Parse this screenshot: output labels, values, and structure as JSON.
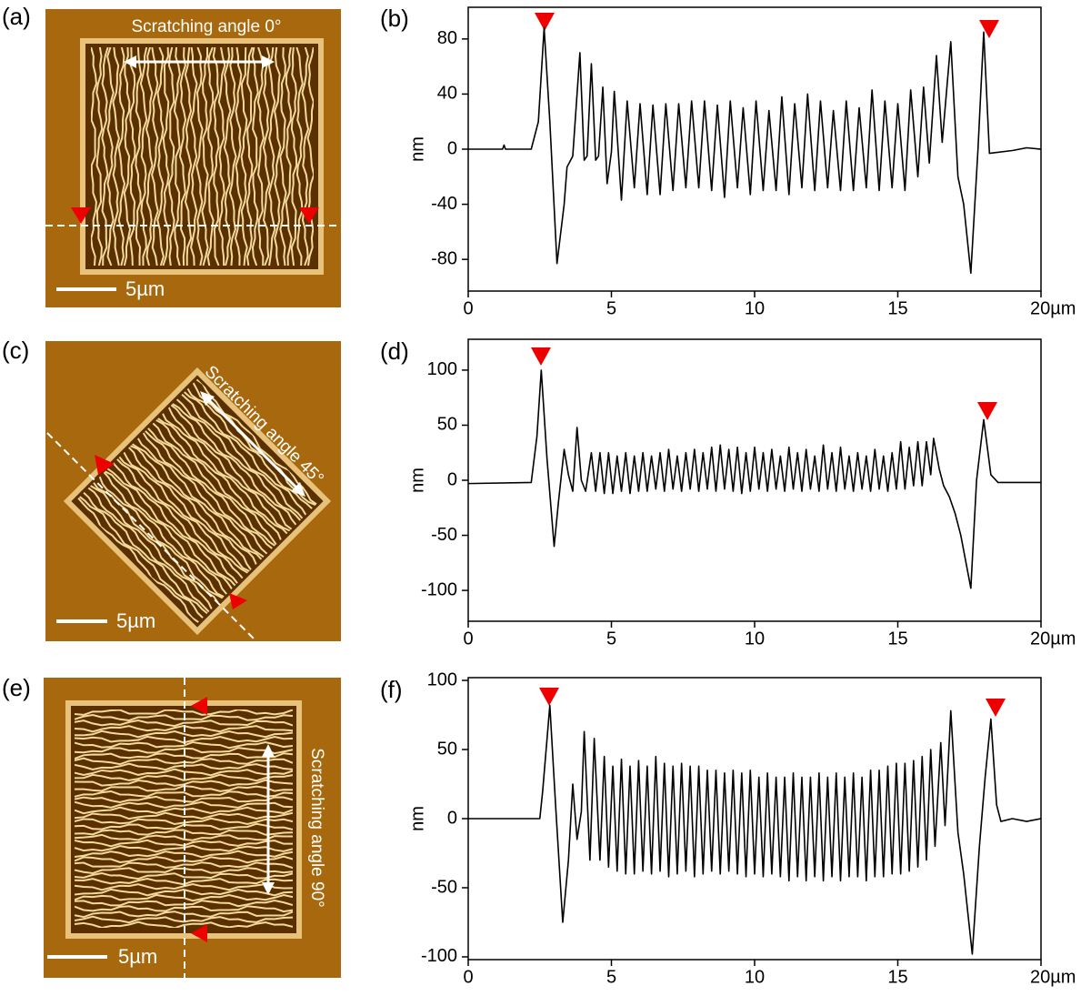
{
  "panels": [
    {
      "label": "(a)",
      "caption": "Scratching angle 0°",
      "scale_bar": "5µm"
    },
    {
      "label": "(c)",
      "caption": "Scratching angle 45°",
      "scale_bar": "5µm"
    },
    {
      "label": "(e)",
      "caption": "Scratching angle 90°",
      "scale_bar": "5µm"
    }
  ],
  "chart_data": [
    {
      "type": "line",
      "panel_label": "(b)",
      "y_label": "nm",
      "color": "#000000",
      "xlim": [
        0,
        20
      ],
      "ylim": [
        -103,
        103
      ],
      "xticks": [
        0,
        5,
        10,
        15,
        {
          "value": 20,
          "label": "20µm"
        }
      ],
      "yticks": [
        -80,
        -40,
        0,
        40,
        80
      ],
      "x": [
        0,
        1.2,
        1.25,
        1.3,
        2.2,
        2.45,
        2.65,
        2.85,
        3.1,
        3.35,
        3.45,
        3.65,
        3.9,
        4.05,
        4.15,
        4.3,
        4.45,
        4.55,
        4.7,
        4.85,
        5.0,
        5.1,
        5.35,
        5.55,
        5.8,
        6.0,
        6.25,
        6.45,
        6.7,
        6.9,
        7.15,
        7.35,
        7.6,
        7.8,
        8.05,
        8.25,
        8.5,
        8.7,
        8.95,
        9.15,
        9.4,
        9.6,
        9.85,
        10.05,
        10.3,
        10.5,
        10.75,
        10.95,
        11.2,
        11.4,
        11.65,
        11.85,
        12.1,
        12.3,
        12.55,
        12.75,
        13.0,
        13.2,
        13.45,
        13.65,
        13.9,
        14.1,
        14.35,
        14.55,
        14.8,
        15.0,
        15.25,
        15.45,
        15.7,
        15.9,
        16.1,
        16.35,
        16.55,
        16.85,
        17.1,
        17.3,
        17.55,
        17.8,
        18.0,
        18.2,
        19.0,
        19.5,
        20
      ],
      "values": [
        0,
        0,
        3,
        0,
        0,
        20,
        88,
        20,
        -83,
        -40,
        -13,
        -5,
        70,
        -8,
        -5,
        62,
        -8,
        -5,
        45,
        -25,
        -2,
        42,
        -37,
        35,
        -28,
        33,
        -33,
        32,
        -33,
        33,
        -30,
        33,
        -28,
        35,
        -28,
        35,
        -30,
        32,
        -35,
        35,
        -28,
        30,
        -33,
        35,
        -30,
        28,
        -30,
        38,
        -33,
        33,
        -28,
        40,
        -30,
        35,
        -28,
        28,
        -30,
        35,
        -30,
        30,
        -28,
        43,
        -30,
        35,
        -28,
        33,
        -30,
        43,
        -20,
        45,
        -10,
        68,
        5,
        78,
        -20,
        -40,
        -90,
        0,
        85,
        -3,
        -1,
        1,
        0
      ]
    },
    {
      "type": "line",
      "panel_label": "(d)",
      "y_label": "nm",
      "color": "#000000",
      "xlim": [
        0,
        20
      ],
      "ylim": [
        -128,
        128
      ],
      "xticks": [
        0,
        5,
        10,
        15,
        {
          "value": 20,
          "label": "20µm"
        }
      ],
      "yticks": [
        -100,
        -50,
        0,
        50,
        100
      ],
      "x": [
        0,
        2.2,
        2.4,
        2.55,
        2.75,
        3.0,
        3.15,
        3.35,
        3.5,
        3.65,
        3.8,
        3.95,
        4.1,
        4.3,
        4.45,
        4.6,
        4.75,
        4.9,
        5.05,
        5.2,
        5.35,
        5.5,
        5.65,
        5.8,
        5.95,
        6.1,
        6.25,
        6.4,
        6.55,
        6.7,
        6.85,
        7.0,
        7.15,
        7.3,
        7.45,
        7.6,
        7.75,
        7.9,
        8.05,
        8.2,
        8.35,
        8.5,
        8.65,
        8.8,
        8.95,
        9.1,
        9.25,
        9.4,
        9.55,
        9.7,
        9.85,
        10.0,
        10.15,
        10.3,
        10.45,
        10.6,
        10.75,
        10.9,
        11.05,
        11.2,
        11.35,
        11.5,
        11.65,
        11.8,
        11.95,
        12.1,
        12.25,
        12.4,
        12.55,
        12.7,
        12.85,
        13.0,
        13.15,
        13.3,
        13.45,
        13.6,
        13.75,
        13.9,
        14.05,
        14.2,
        14.35,
        14.5,
        14.65,
        14.8,
        14.95,
        15.1,
        15.25,
        15.4,
        15.55,
        15.7,
        15.85,
        16.0,
        16.15,
        16.25,
        16.45,
        16.6,
        16.8,
        17.0,
        17.2,
        17.55,
        17.75,
        18.0,
        18.25,
        18.5,
        20
      ],
      "values": [
        -3,
        -2,
        40,
        100,
        20,
        -60,
        -20,
        28,
        5,
        -10,
        48,
        0,
        -10,
        25,
        -10,
        25,
        -12,
        25,
        -12,
        22,
        -10,
        25,
        -12,
        22,
        -10,
        25,
        -10,
        22,
        -8,
        25,
        -10,
        28,
        -8,
        22,
        -10,
        25,
        -8,
        28,
        -10,
        25,
        -8,
        30,
        -10,
        32,
        -8,
        28,
        -10,
        30,
        -12,
        25,
        -10,
        30,
        -8,
        25,
        -10,
        28,
        -8,
        22,
        -10,
        30,
        -8,
        25,
        -10,
        28,
        -8,
        22,
        -10,
        32,
        -8,
        25,
        -10,
        30,
        -8,
        22,
        -10,
        25,
        -8,
        22,
        -10,
        28,
        -8,
        22,
        -10,
        25,
        -8,
        35,
        -8,
        30,
        -5,
        35,
        -5,
        35,
        5,
        38,
        10,
        -5,
        -15,
        -30,
        -50,
        -98,
        0,
        55,
        5,
        -2,
        -2
      ]
    },
    {
      "type": "line",
      "panel_label": "(f)",
      "y_label": "nm",
      "color": "#000000",
      "xlim": [
        0,
        20
      ],
      "ylim": [
        -102,
        102
      ],
      "xticks": [
        0,
        5,
        10,
        15,
        {
          "value": 20,
          "label": "20µm"
        }
      ],
      "yticks": [
        -100,
        -50,
        0,
        50,
        100
      ],
      "x": [
        0,
        2.5,
        2.6,
        2.85,
        3.05,
        3.3,
        3.5,
        3.65,
        3.8,
        3.95,
        4.05,
        4.25,
        4.4,
        4.6,
        4.75,
        4.9,
        5.05,
        5.2,
        5.35,
        5.5,
        5.65,
        5.8,
        5.95,
        6.1,
        6.25,
        6.4,
        6.55,
        6.7,
        6.85,
        7.0,
        7.15,
        7.3,
        7.45,
        7.6,
        7.75,
        7.9,
        8.05,
        8.2,
        8.35,
        8.5,
        8.65,
        8.8,
        8.95,
        9.1,
        9.25,
        9.4,
        9.55,
        9.7,
        9.85,
        10.0,
        10.15,
        10.3,
        10.45,
        10.6,
        10.75,
        10.9,
        11.05,
        11.2,
        11.35,
        11.5,
        11.65,
        11.8,
        11.95,
        12.1,
        12.25,
        12.4,
        12.55,
        12.7,
        12.85,
        13.0,
        13.15,
        13.3,
        13.45,
        13.6,
        13.75,
        13.9,
        14.05,
        14.2,
        14.35,
        14.5,
        14.65,
        14.8,
        14.95,
        15.1,
        15.25,
        15.4,
        15.55,
        15.7,
        15.85,
        16.0,
        16.15,
        16.3,
        16.5,
        16.65,
        16.85,
        17.1,
        17.3,
        17.6,
        17.85,
        18.05,
        18.25,
        18.45,
        18.6,
        19.0,
        19.5,
        20
      ],
      "values": [
        0,
        0,
        20,
        82,
        10,
        -75,
        -30,
        25,
        -15,
        5,
        63,
        -30,
        58,
        -30,
        45,
        -35,
        38,
        -38,
        43,
        -40,
        38,
        -40,
        42,
        -38,
        38,
        -40,
        45,
        -38,
        40,
        -42,
        38,
        -40,
        40,
        -38,
        38,
        -42,
        38,
        -40,
        35,
        -38,
        35,
        -40,
        33,
        -38,
        35,
        -40,
        33,
        -42,
        35,
        -40,
        30,
        -42,
        33,
        -40,
        30,
        -42,
        30,
        -45,
        33,
        -42,
        30,
        -45,
        30,
        -42,
        33,
        -45,
        30,
        -42,
        33,
        -45,
        30,
        -42,
        33,
        -42,
        30,
        -45,
        35,
        -42,
        35,
        -42,
        38,
        -40,
        40,
        -40,
        40,
        -38,
        42,
        -35,
        45,
        -30,
        50,
        -20,
        55,
        -5,
        78,
        -10,
        -40,
        -98,
        -20,
        30,
        72,
        10,
        -2,
        0,
        -2,
        0
      ]
    }
  ]
}
